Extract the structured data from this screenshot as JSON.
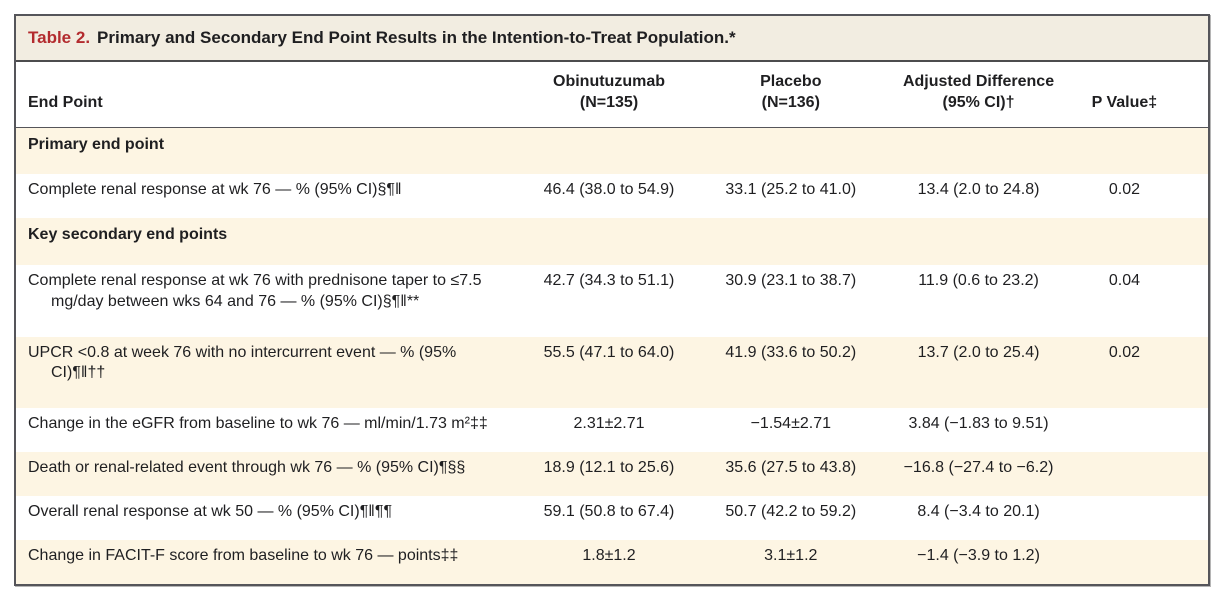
{
  "colors": {
    "accent_red": "#b32b2e",
    "title_bar_bg": "#f2ede1",
    "shaded_row_bg": "#fdf5e3",
    "border_dark": "#55555a",
    "text": "#1f1f21",
    "page_bg": "#ffffff"
  },
  "table": {
    "title_label": "Table 2.",
    "title_text": "Primary and Secondary End Point Results in the Intention-to-Treat Population.*",
    "columns": [
      {
        "lines": [
          "End Point"
        ]
      },
      {
        "lines": [
          "Obinutuzumab",
          "(N=135)"
        ]
      },
      {
        "lines": [
          "Placebo",
          "(N=136)"
        ]
      },
      {
        "lines": [
          "Adjusted Difference",
          "(95% CI)†"
        ]
      },
      {
        "lines": [
          "P Value‡"
        ]
      }
    ],
    "rows": [
      {
        "type": "section",
        "shaded": true,
        "label": "Primary end point"
      },
      {
        "type": "data",
        "shaded": false,
        "label": "Complete renal response at wk 76 — % (95% CI)§¶‖",
        "values": [
          "46.4 (38.0 to 54.9)",
          "33.1 (25.2 to 41.0)",
          "13.4 (2.0 to 24.8)",
          "0.02"
        ]
      },
      {
        "type": "section",
        "shaded": true,
        "label": "Key secondary end points"
      },
      {
        "type": "data",
        "shaded": false,
        "label": "Complete renal response at wk 76 with prednisone taper to ≤7.5 mg/day between wks 64 and 76 — % (95% CI)§¶‖**",
        "values": [
          "42.7 (34.3 to 51.1)",
          "30.9 (23.1 to 38.7)",
          "11.9 (0.6 to 23.2)",
          "0.04"
        ]
      },
      {
        "type": "data",
        "shaded": true,
        "label": "UPCR <0.8 at week 76 with no intercurrent event — % (95% CI)¶‖††",
        "values": [
          "55.5 (47.1 to 64.0)",
          "41.9 (33.6 to 50.2)",
          "13.7 (2.0 to 25.4)",
          "0.02"
        ]
      },
      {
        "type": "data",
        "shaded": false,
        "label": "Change in the eGFR from baseline to wk 76 — ml/min/1.73 m²‡‡",
        "values": [
          "2.31±2.71",
          "−1.54±2.71",
          "3.84 (−1.83 to 9.51)",
          ""
        ]
      },
      {
        "type": "data",
        "shaded": true,
        "label": "Death or renal-related event through wk 76 — % (95% CI)¶§§",
        "values": [
          "18.9 (12.1 to 25.6)",
          "35.6 (27.5 to 43.8)",
          "−16.8 (−27.4 to −6.2)",
          ""
        ]
      },
      {
        "type": "data",
        "shaded": false,
        "label": "Overall renal response at wk 50 — % (95% CI)¶‖¶¶",
        "values": [
          "59.1 (50.8 to 67.4)",
          "50.7 (42.2 to 59.2)",
          "8.4 (−3.4 to 20.1)",
          ""
        ]
      },
      {
        "type": "data",
        "shaded": true,
        "label": "Change in FACIT-F score from baseline to wk 76 — points‡‡",
        "values": [
          "1.8±1.2",
          "3.1±1.2",
          "−1.4 (−3.9 to 1.2)",
          ""
        ]
      }
    ]
  }
}
